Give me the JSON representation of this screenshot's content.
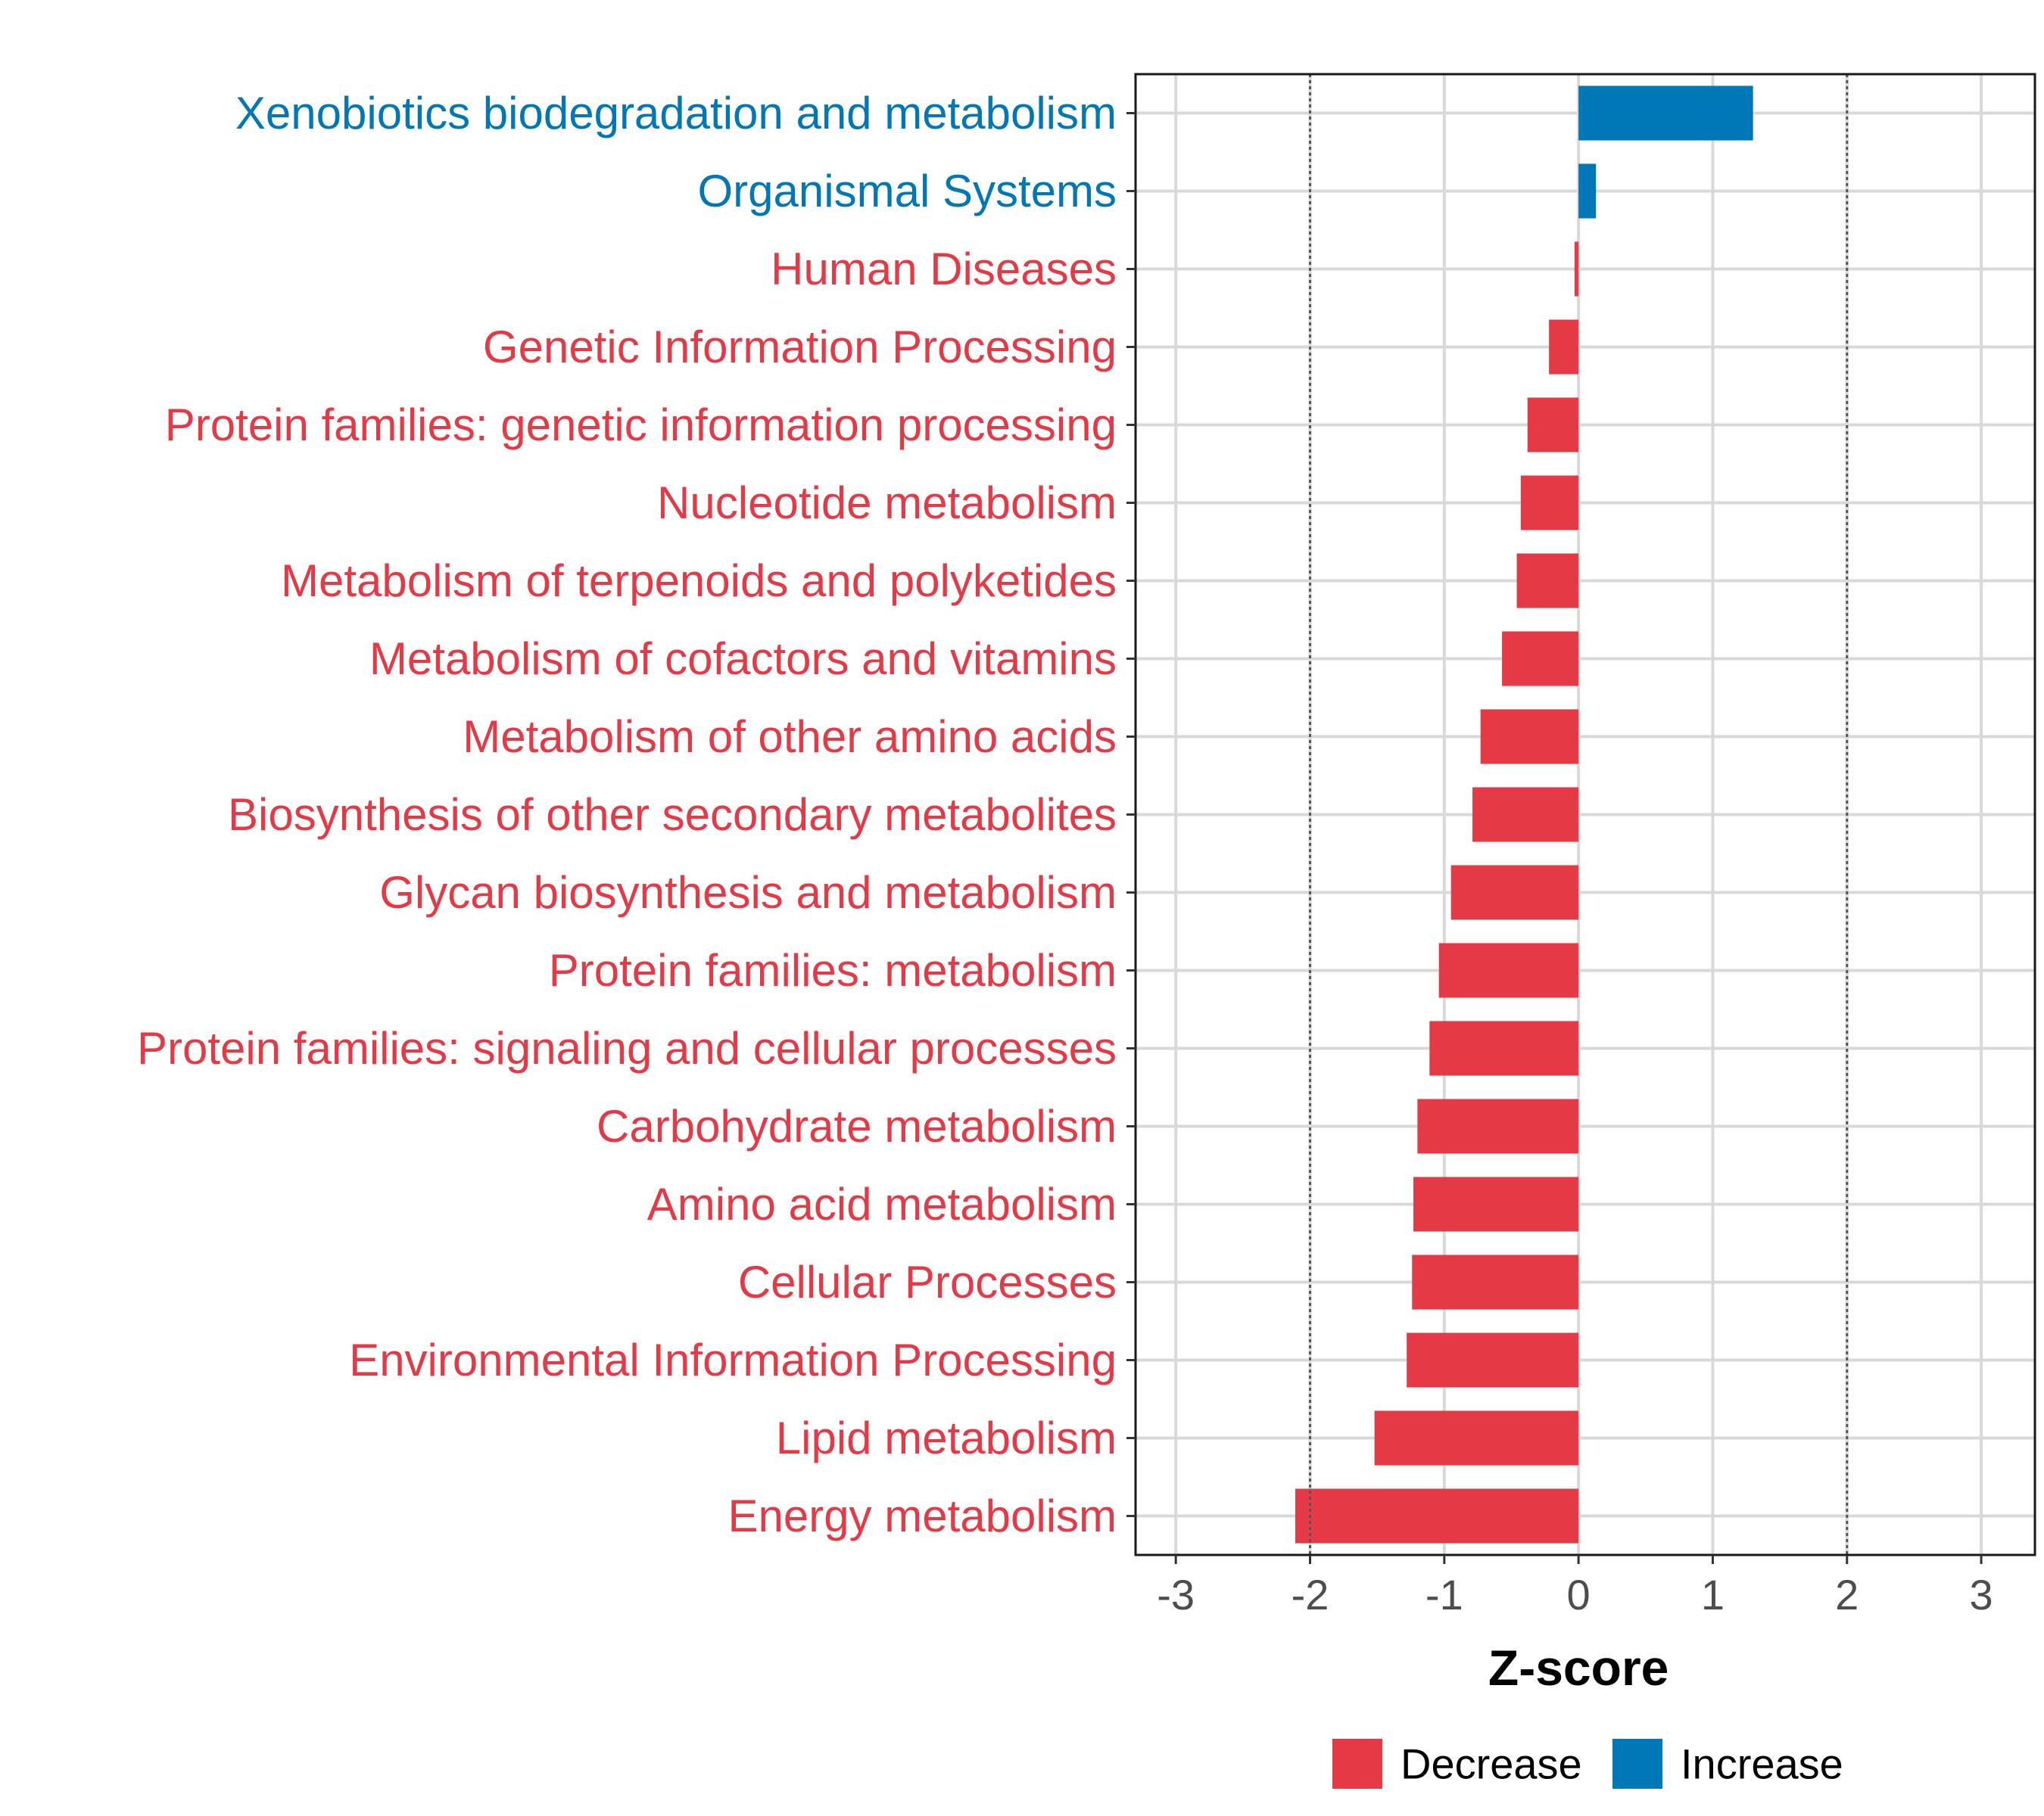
{
  "chart_data": {
    "type": "bar",
    "orientation": "horizontal",
    "xlabel": "Z-score",
    "xlim": [
      -3.3,
      3.4
    ],
    "x_ticks": [
      -3,
      -2,
      -1,
      0,
      1,
      2,
      3
    ],
    "x_tick_labels": [
      "-3",
      "-2",
      "-1",
      "0",
      "1",
      "2",
      "3"
    ],
    "reference_lines": [
      -2,
      2
    ],
    "grid": true,
    "legend_position": "bottom",
    "colors": {
      "Decrease": "#e63946",
      "Increase": "#0077b6"
    },
    "legend": [
      {
        "label": "Decrease",
        "color": "#e63946"
      },
      {
        "label": "Increase",
        "color": "#0077b6"
      }
    ],
    "categories": [
      "Xenobiotics biodegradation and metabolism",
      "Organismal Systems",
      "Human Diseases",
      "Genetic Information Processing",
      "Protein families: genetic information processing",
      "Nucleotide metabolism",
      "Metabolism of terpenoids and polyketides",
      "Metabolism of cofactors and vitamins",
      "Metabolism of other amino acids",
      "Biosynthesis of other secondary metabolites",
      "Glycan biosynthesis and metabolism",
      "Protein families: metabolism",
      "Protein families: signaling and cellular processes",
      "Carbohydrate metabolism",
      "Amino acid metabolism",
      "Cellular Processes",
      "Environmental Information Processing",
      "Lipid metabolism",
      "Energy metabolism"
    ],
    "values": [
      1.3,
      0.13,
      -0.03,
      -0.22,
      -0.38,
      -0.43,
      -0.46,
      -0.57,
      -0.73,
      -0.79,
      -0.95,
      -1.04,
      -1.11,
      -1.2,
      -1.23,
      -1.24,
      -1.28,
      -1.52,
      -2.11
    ],
    "direction": [
      "Increase",
      "Increase",
      "Decrease",
      "Decrease",
      "Decrease",
      "Decrease",
      "Decrease",
      "Decrease",
      "Decrease",
      "Decrease",
      "Decrease",
      "Decrease",
      "Decrease",
      "Decrease",
      "Decrease",
      "Decrease",
      "Decrease",
      "Decrease",
      "Decrease"
    ]
  }
}
